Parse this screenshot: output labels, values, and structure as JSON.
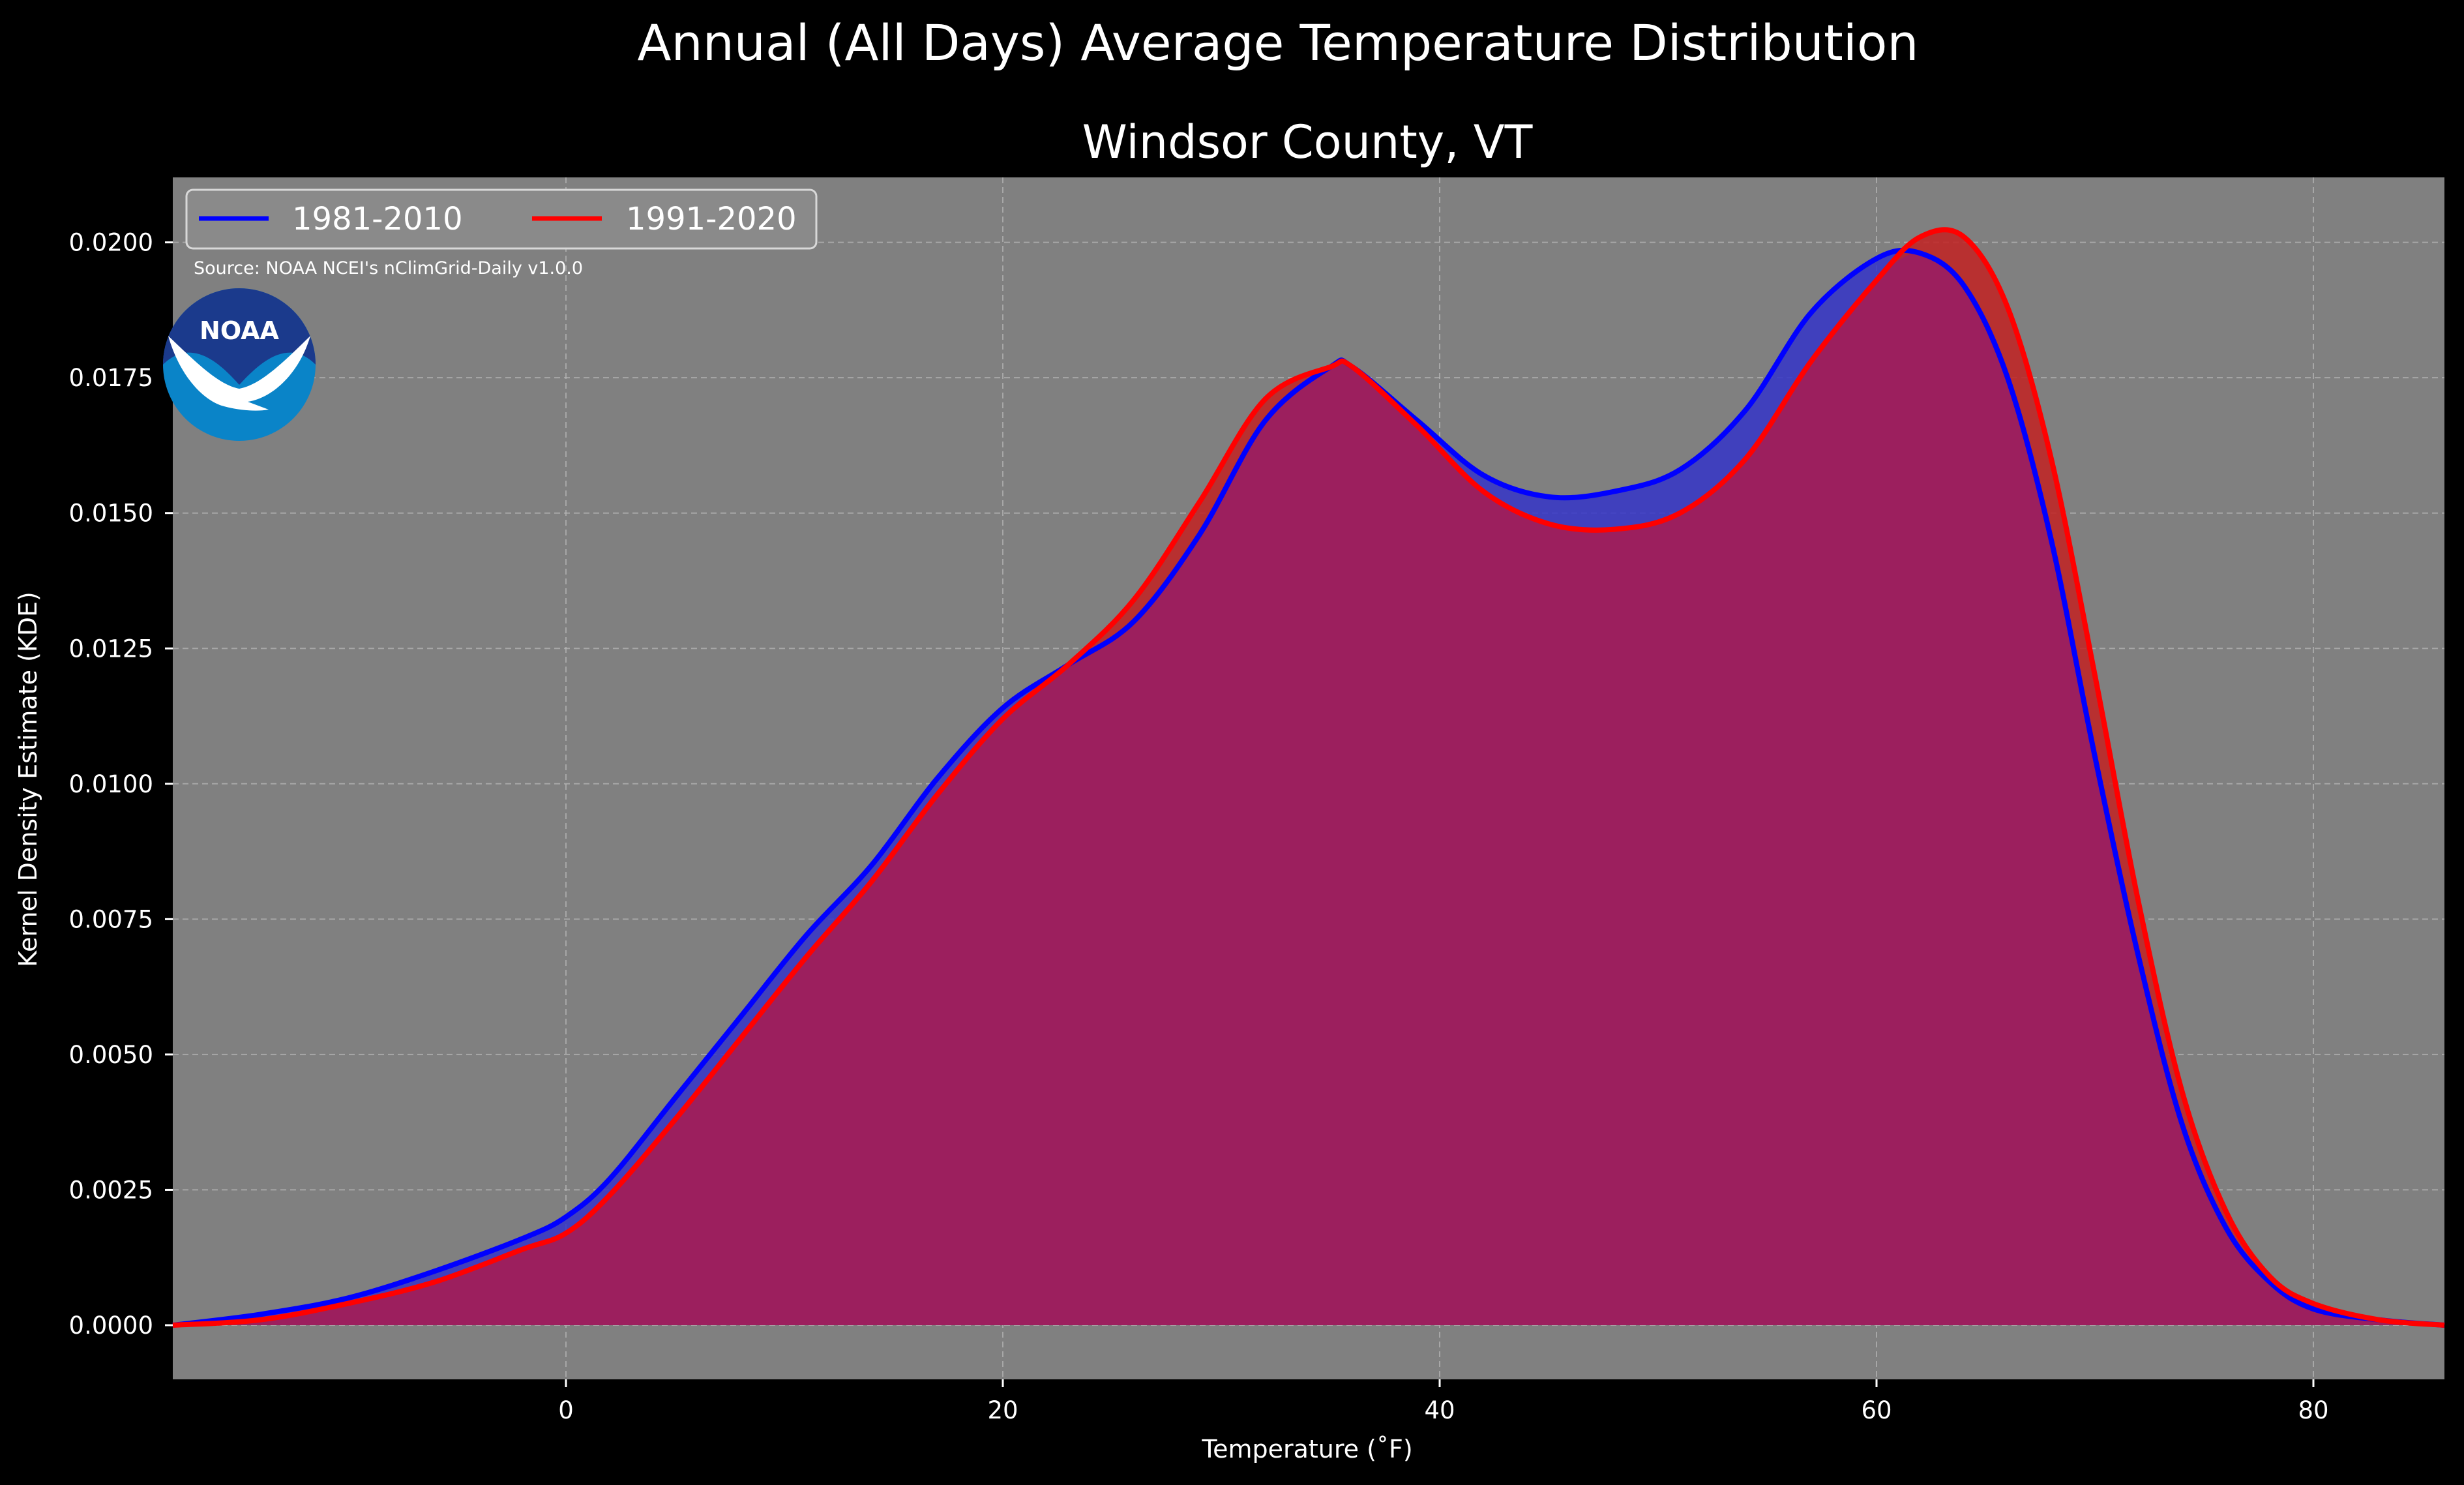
{
  "chart_data": {
    "type": "area",
    "title": "Annual (All Days) Average Temperature Distribution",
    "subtitle": "Windsor County, VT",
    "xlabel": "Temperature (˚F)",
    "ylabel": "Kernel Density Estimate (KDE)",
    "xlim": [
      -18,
      86
    ],
    "ylim": [
      -0.001,
      0.0212
    ],
    "xticks": [
      0,
      20,
      40,
      60,
      80
    ],
    "yticks": [
      0.0,
      0.0025,
      0.005,
      0.0075,
      0.01,
      0.0125,
      0.015,
      0.0175,
      0.02
    ],
    "ytick_labels": [
      "0.0000",
      "0.0025",
      "0.0050",
      "0.0075",
      "0.0100",
      "0.0125",
      "0.0150",
      "0.0175",
      "0.0200"
    ],
    "grid": true,
    "legend_position": "top-left",
    "source_note": "Source: NOAA NCEI's nClimGrid-Daily v1.0.0",
    "logo_text": "NOAA",
    "colors": {
      "figure_bg": "#000000",
      "plot_bg": "#808080",
      "text": "#ffffff",
      "fill_overlap": "#9c1f5e",
      "logo_blue": "#0a84c8",
      "logo_navy": "#1b3a8c"
    },
    "series": [
      {
        "name": "1981-2010",
        "color": "#0000ff",
        "fill": "#3535c8",
        "x": [
          -18,
          -14,
          -10,
          -6,
          -2,
          0,
          2,
          5,
          8,
          11,
          14,
          17,
          20,
          23,
          26,
          29,
          32,
          35,
          36,
          39,
          42,
          45,
          48,
          51,
          54,
          57,
          60,
          62,
          64,
          66,
          68,
          70,
          72,
          74,
          76,
          78,
          80,
          83,
          86
        ],
        "y": [
          0.0,
          0.0002,
          0.0005,
          0.001,
          0.0016,
          0.002,
          0.0027,
          0.0042,
          0.0057,
          0.0072,
          0.0085,
          0.0101,
          0.0114,
          0.0122,
          0.013,
          0.0146,
          0.0167,
          0.0177,
          0.0177,
          0.0167,
          0.0157,
          0.0153,
          0.0154,
          0.0158,
          0.0169,
          0.0187,
          0.0197,
          0.0198,
          0.0192,
          0.0175,
          0.0145,
          0.0105,
          0.0068,
          0.0037,
          0.0018,
          0.0008,
          0.0003,
          0.0001,
          0.0
        ]
      },
      {
        "name": "1991-2020",
        "color": "#ff0000",
        "fill": "#c22222",
        "x": [
          -18,
          -14,
          -10,
          -6,
          -2,
          0,
          2,
          5,
          8,
          11,
          14,
          17,
          20,
          23,
          26,
          29,
          32,
          35,
          36,
          39,
          42,
          45,
          48,
          51,
          54,
          57,
          60,
          62,
          64,
          66,
          68,
          70,
          72,
          74,
          76,
          78,
          80,
          83,
          86
        ],
        "y": [
          0.0,
          0.0001,
          0.0004,
          0.0008,
          0.0014,
          0.0017,
          0.0024,
          0.0038,
          0.0053,
          0.0068,
          0.0082,
          0.0098,
          0.0112,
          0.0122,
          0.0134,
          0.0152,
          0.0171,
          0.0177,
          0.0177,
          0.0166,
          0.0154,
          0.0148,
          0.0147,
          0.015,
          0.016,
          0.0178,
          0.0193,
          0.0201,
          0.0201,
          0.0188,
          0.016,
          0.012,
          0.0078,
          0.0043,
          0.0021,
          0.0009,
          0.0004,
          0.0001,
          0.0
        ]
      }
    ]
  }
}
